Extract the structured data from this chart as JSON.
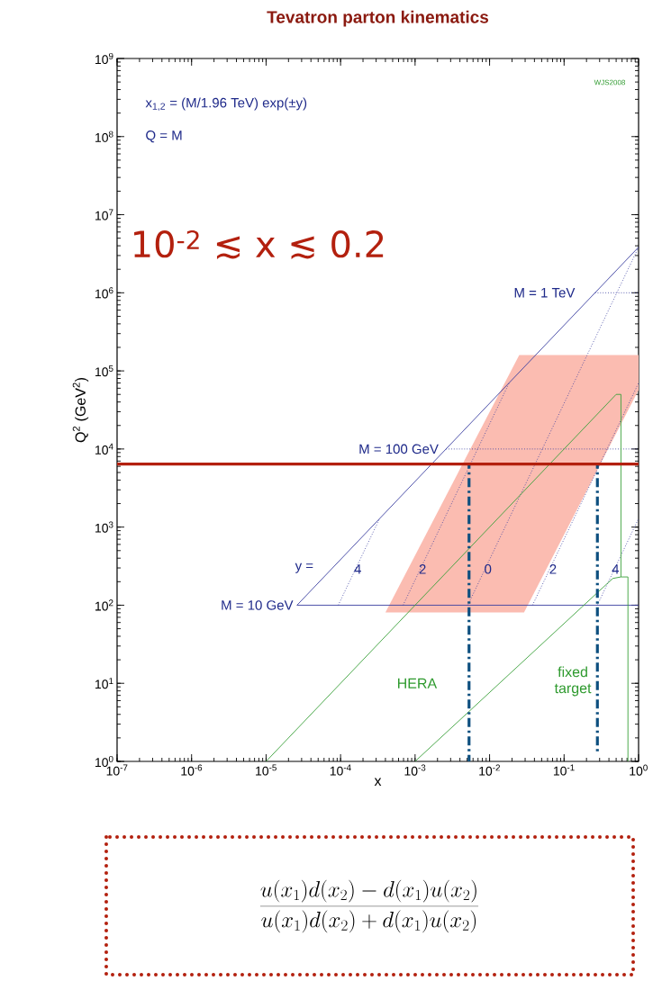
{
  "chart_data": {
    "type": "line",
    "title": "Tevatron parton kinematics",
    "xlabel": "x",
    "ylabel": "Q$^{2}$  (GeV$^{2}$)",
    "log": "xy",
    "xlim": [
      1e-07,
      1
    ],
    "ylim": [
      1,
      1000000000.0
    ],
    "xticks": [
      {
        "value": 1e-07,
        "label": "10$^{-7}$"
      },
      {
        "value": 1e-06,
        "label": "10$^{-6}$"
      },
      {
        "value": 1e-05,
        "label": "10$^{-5}$"
      },
      {
        "value": 0.0001,
        "label": "10$^{-4}$"
      },
      {
        "value": 0.001,
        "label": "10$^{-3}$"
      },
      {
        "value": 0.01,
        "label": "10$^{-2}$"
      },
      {
        "value": 0.1,
        "label": "10$^{-1}$"
      },
      {
        "value": 1,
        "label": "10$^{0}$"
      }
    ],
    "yticks": [
      {
        "value": 1,
        "label": "10$^{0}$"
      },
      {
        "value": 10,
        "label": "10$^{1}$"
      },
      {
        "value": 100,
        "label": "10$^{2}$"
      },
      {
        "value": 1000,
        "label": "10$^{3}$"
      },
      {
        "value": 10000,
        "label": "10$^{4}$"
      },
      {
        "value": 100000,
        "label": "10$^{5}$"
      },
      {
        "value": 1000000,
        "label": "10$^{6}$"
      },
      {
        "value": 10000000,
        "label": "10$^{7}$"
      },
      {
        "value": 100000000,
        "label": "10$^{8}$"
      },
      {
        "value": 1000000000,
        "label": "10$^{9}$"
      }
    ],
    "series": [
      {
        "type": "area",
        "color": "#fbbcb1",
        "x": [
          0.0004,
          0.025,
          1,
          1,
          0.029
        ],
        "values": [
          81,
          160000,
          160000,
          57000,
          81
        ]
      },
      {
        "color": "#3b3fa0",
        "line_style": "solid",
        "x": [
          2.6e-05,
          1
        ],
        "values": [
          100,
          3840000
        ]
      },
      {
        "color": "#3b3fa0",
        "line_style": "solid",
        "x": [
          2.6e-05,
          1
        ],
        "values": [
          100,
          100
        ]
      },
      {
        "color": "#3b3fa0",
        "line_style": "dotted",
        "x": [
          0.0026,
          1
        ],
        "values": [
          10000,
          10000
        ]
      },
      {
        "color": "#3b3fa0",
        "line_style": "dotted",
        "x": [
          0.26,
          1
        ],
        "values": [
          1000000,
          1000000
        ]
      },
      {
        "color": "#3b3fa0",
        "line_style": "dotted",
        "x": [
          9.3e-05,
          0.000335
        ],
        "values": [
          100,
          1290
        ]
      },
      {
        "color": "#3b3fa0",
        "line_style": "dotted",
        "x": [
          0.00069,
          0.0183
        ],
        "values": [
          100,
          70000
        ]
      },
      {
        "color": "#3b3fa0",
        "line_style": "dotted",
        "x": [
          0.0051,
          1
        ],
        "values": [
          100,
          3840000
        ]
      },
      {
        "color": "#3b3fa0",
        "line_style": "dotted",
        "x": [
          0.0377,
          1
        ],
        "values": [
          100,
          70000
        ]
      },
      {
        "color": "#3b3fa0",
        "line_style": "dotted",
        "x": [
          0.279,
          1
        ],
        "values": [
          100,
          1290
        ]
      },
      {
        "color": "#3aa03a",
        "line_style": "solid",
        "x": [
          1e-05,
          0.5,
          0.58,
          0.58
        ],
        "values": [
          1,
          50000,
          50000,
          230
        ]
      },
      {
        "color": "#3aa03a",
        "line_style": "solid",
        "x": [
          0.001,
          0.45,
          0.58,
          0.72,
          0.72
        ],
        "values": [
          1,
          220,
          230,
          230,
          1
        ]
      },
      {
        "color": "#0d4f7f",
        "line_style": "dashdot",
        "x": [
          0.0053,
          0.0053
        ],
        "values": [
          1,
          6400
        ]
      },
      {
        "color": "#0d4f7f",
        "line_style": "dashdot",
        "x": [
          0.28,
          0.28
        ],
        "values": [
          1.3,
          6400
        ]
      }
    ],
    "ref_lines": [
      {
        "axis": "y",
        "value": 6400,
        "color": "#b3200e"
      }
    ],
    "annotations": [
      "x$_{1,2}$ = (M/1.96 TeV) exp(±y)",
      "Q = M",
      "WJS2008",
      "10$^{-2}$ ≲ x ≲ 0.2",
      {
        "text": "M = 1 TeV",
        "x": 0.26,
        "y": 1000000
      },
      {
        "text": "M = 100 GeV",
        "x": 0.0026,
        "y": 10000
      },
      {
        "text": "M = 10 GeV",
        "x": 2.6e-05,
        "y": 100
      },
      "y =",
      {
        "text": "4",
        "x": 0.00017,
        "y": 290
      },
      {
        "text": "2",
        "x": 0.00126,
        "y": 290
      },
      {
        "text": "0",
        "x": 0.0095,
        "y": 290
      },
      {
        "text": "2",
        "x": 0.071,
        "y": 290
      },
      {
        "text": "4",
        "x": 0.49,
        "y": 290
      },
      "HERA",
      "fixed target",
      "\\frac{u(x_1)d(x_2) - d(x_1)u(x_2)}{u(x_1)d(x_2) + d(x_1)u(x_2)}"
    ]
  }
}
